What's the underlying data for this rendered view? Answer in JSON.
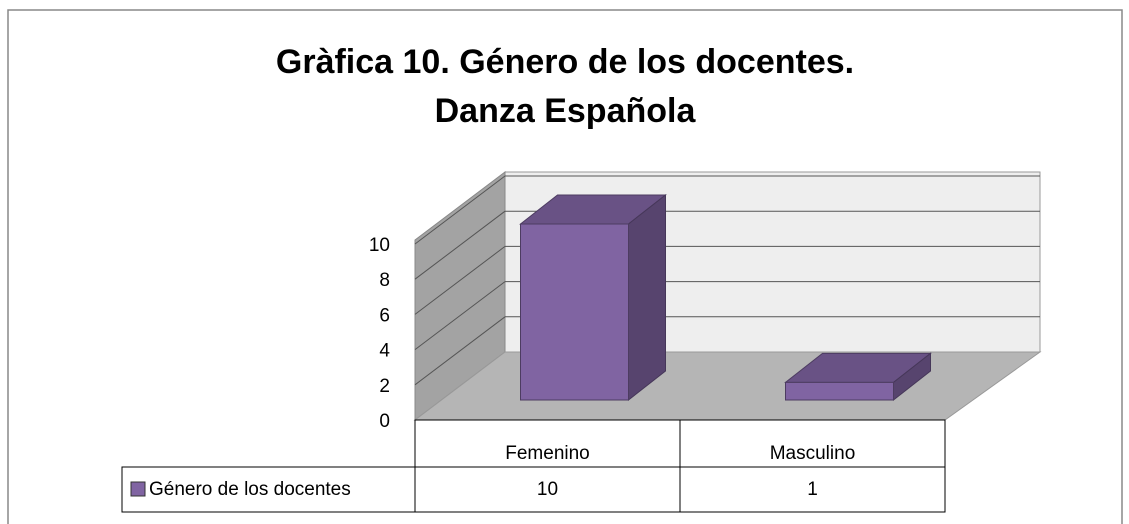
{
  "chart_data": {
    "type": "bar3d",
    "title": [
      "Gràfica 10. Género de los docentes.",
      "Danza Española"
    ],
    "categories": [
      "Femenino",
      "Masculino"
    ],
    "series": [
      {
        "name": "Género de los docentes",
        "color": "#8064a2",
        "values": [
          10,
          1
        ]
      }
    ],
    "ylim": [
      0,
      10
    ],
    "yticks": [
      0,
      2,
      4,
      6,
      8,
      10
    ],
    "grid": true
  }
}
